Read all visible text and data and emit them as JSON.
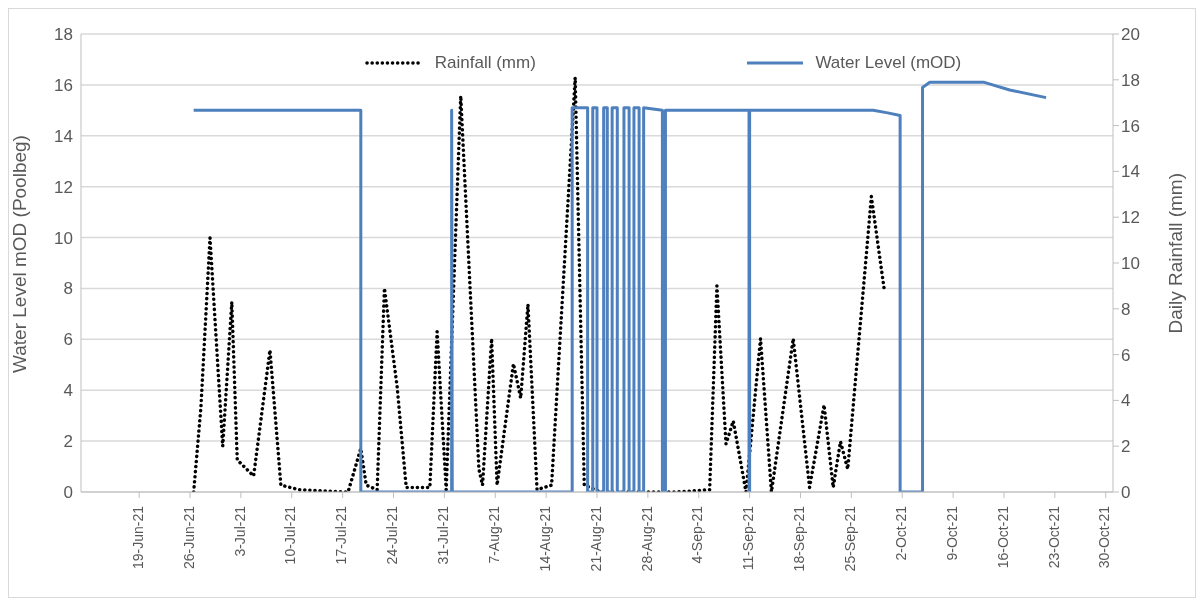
{
  "chart_data": {
    "type": "line",
    "ylabel": "Water Level mOD (Poolbeg)",
    "y2label": "Daily Rainfall (mm)",
    "xlim": [
      "--06-11",
      "--10-31"
    ],
    "xticks": [
      {
        "value": "--06-19",
        "label": "19-Jun-21"
      },
      {
        "value": "--06-26",
        "label": "26-Jun-21"
      },
      {
        "value": "--07-03",
        "label": "3-Jul-21"
      },
      {
        "value": "--07-10",
        "label": "10-Jul-21"
      },
      {
        "value": "--07-17",
        "label": "17-Jul-21"
      },
      {
        "value": "--07-24",
        "label": "24-Jul-21"
      },
      {
        "value": "--07-31",
        "label": "31-Jul-21"
      },
      {
        "value": "--08-07",
        "label": "7-Aug-21"
      },
      {
        "value": "--08-14",
        "label": "14-Aug-21"
      },
      {
        "value": "--08-21",
        "label": "21-Aug-21"
      },
      {
        "value": "--08-28",
        "label": "28-Aug-21"
      },
      {
        "value": "--09-04",
        "label": "4-Sep-21"
      },
      {
        "value": "--09-11",
        "label": "11-Sep-21"
      },
      {
        "value": "--09-18",
        "label": "18-Sep-21"
      },
      {
        "value": "--09-25",
        "label": "25-Sep-21"
      },
      {
        "value": "--10-02",
        "label": "2-Oct-21"
      },
      {
        "value": "--10-09",
        "label": "9-Oct-21"
      },
      {
        "value": "--10-16",
        "label": "16-Oct-21"
      },
      {
        "value": "--10-23",
        "label": "23-Oct-21"
      },
      {
        "value": "--10-30",
        "label": "30-Oct-21"
      }
    ],
    "ylim": [
      0,
      18
    ],
    "yticks": [
      0,
      2,
      4,
      6,
      8,
      10,
      12,
      14,
      16,
      18
    ],
    "y2lim": [
      0,
      20
    ],
    "y2ticks": [
      0,
      2,
      4,
      6,
      8,
      10,
      12,
      14,
      16,
      18,
      20
    ],
    "grid": "y",
    "legend": "top",
    "marker": "none",
    "series": [
      {
        "name": "Rainfall (mm)",
        "color": "#000000",
        "axis": "y2",
        "line_style": "dotted",
        "x": [
          "--06-26T12:00",
          "--06-27T12:00",
          "--06-28T18:00",
          "--06-30T12:00",
          "--07-01T18:00",
          "--07-02T12:00",
          "--07-04T18:00",
          "--07-07T00:00",
          "--07-08T12:00",
          "--07-11T00:00",
          "--07-17T18:00",
          "--07-19T12:00",
          "--07-20T06:00",
          "--07-21T18:00",
          "--07-22T18:00",
          "--07-24T12:00",
          "--07-25T18:00",
          "--07-29T00:00",
          "--07-30T00:00",
          "--07-31T06:00",
          "--08-02T06:00",
          "--08-04T18:00",
          "--08-05T06:00",
          "--08-06T12:00",
          "--08-07T06:00",
          "--08-09T12:00",
          "--08-10T12:00",
          "--08-11T12:00",
          "--08-12T18:00",
          "--08-14T18:00",
          "--08-18T00:00",
          "--08-19T06:00",
          "--08-21T12:00",
          "--09-01T00:00",
          "--09-05T12:00",
          "--09-06T12:00",
          "--09-07T18:00",
          "--09-08T18:00",
          "--09-10T12:00",
          "--09-12T12:00",
          "--09-14T00:00",
          "--09-17T00:00",
          "--09-19T06:00",
          "--09-21T06:00",
          "--09-22T12:00",
          "--09-23T12:00",
          "--09-24T12:00",
          "--09-27T18:00",
          "--09-29T12:00"
        ],
        "values": [
          0,
          3.7,
          11.1,
          2.0,
          8.3,
          1.4,
          0.7,
          6.2,
          0.3,
          0.1,
          0,
          1.9,
          0.3,
          0.1,
          8.9,
          4.6,
          0.2,
          0.2,
          7.0,
          0.1,
          17.3,
          1.0,
          0.3,
          6.7,
          0.3,
          5.6,
          4.1,
          8.2,
          0.1,
          0.3,
          18.1,
          0.3,
          0,
          0,
          0.1,
          9.0,
          2.1,
          3.1,
          0,
          6.7,
          0,
          6.7,
          0.2,
          3.8,
          0.2,
          2.2,
          1.0,
          12.9,
          8.9
        ]
      },
      {
        "name": "Water Level (mOD)",
        "color": "#4e80bd",
        "axis": "y",
        "line_style": "solid",
        "x": [
          "--06-26T12:00",
          "--07-19T12:00",
          "--07-19T12:00",
          "--08-01T00:00",
          "--08-01T00:00",
          "--08-01T02:00",
          "--08-17T14:00",
          "--08-17T14:00",
          "--08-19T17:00",
          "--08-19T17:00",
          "--08-20T10:00",
          "--08-20T10:00",
          "--08-21T00:00",
          "--08-21T00:00",
          "--08-21T22:00",
          "--08-21T22:00",
          "--08-22T10:00",
          "--08-22T10:00",
          "--08-23T02:00",
          "--08-23T02:00",
          "--08-23T19:00",
          "--08-23T19:00",
          "--08-24T17:00",
          "--08-24T17:00",
          "--08-25T10:00",
          "--08-25T10:00",
          "--08-26T02:00",
          "--08-26T02:00",
          "--08-26T19:00",
          "--08-26T19:00",
          "--08-27T10:00",
          "--08-27T10:00",
          "--08-30T00:00",
          "--08-30T00:00",
          "--08-30T10:00",
          "--08-30T10:00",
          "--09-10T22:00",
          "--09-10T22:00",
          "--09-11T00:00",
          "--09-11T00:00",
          "--09-28T00:00",
          "--09-30T00:00",
          "--10-01T17:00",
          "--10-01T17:00",
          "--10-04T19:00",
          "--10-04T19:00",
          "--10-05T19:00",
          "--10-13T07:00",
          "--10-16T19:00",
          "--10-21T19:00"
        ],
        "values": [
          15.0,
          15.0,
          0,
          0,
          15.0,
          0,
          0,
          15.1,
          15.1,
          0,
          0,
          15.1,
          15.1,
          0,
          0,
          15.1,
          15.1,
          0,
          0,
          15.1,
          15.1,
          0,
          0,
          15.1,
          15.1,
          0,
          0,
          15.1,
          15.1,
          0,
          0,
          15.1,
          15.0,
          0,
          0,
          15.0,
          15.0,
          0,
          0,
          15.0,
          15.0,
          14.9,
          14.8,
          0,
          0,
          15.9,
          16.1,
          16.1,
          15.8,
          15.5
        ]
      }
    ]
  }
}
